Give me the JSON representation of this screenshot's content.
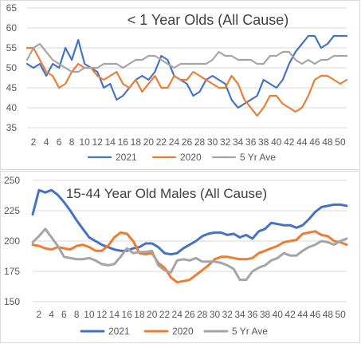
{
  "chart_data": [
    {
      "type": "line",
      "title": "< 1 Year Olds (All Cause)",
      "xlabel": "",
      "ylabel": "",
      "x": [
        1,
        2,
        3,
        4,
        5,
        6,
        7,
        8,
        9,
        10,
        11,
        12,
        13,
        14,
        15,
        16,
        17,
        18,
        19,
        20,
        21,
        22,
        23,
        24,
        25,
        26,
        27,
        28,
        29,
        30,
        31,
        32,
        33,
        34,
        35,
        36,
        37,
        38,
        39,
        40,
        41,
        42,
        43,
        44,
        45,
        46,
        47,
        48,
        49,
        50,
        51
      ],
      "x_ticks": [
        2,
        4,
        6,
        8,
        10,
        12,
        14,
        16,
        18,
        20,
        22,
        24,
        26,
        28,
        30,
        32,
        34,
        36,
        38,
        40,
        42,
        44,
        46,
        48,
        50
      ],
      "ylim": [
        35,
        65
      ],
      "y_ticks": [
        35,
        40,
        45,
        50,
        55,
        60,
        65
      ],
      "grid": true,
      "legend": "bottom",
      "series": [
        {
          "name": "2021",
          "color": "#4472c4",
          "values": [
            51,
            50,
            51,
            48,
            51,
            50,
            55,
            52,
            57,
            51,
            50,
            49,
            45,
            46,
            42,
            43,
            45,
            47,
            48,
            47,
            49,
            53,
            52,
            48,
            47,
            46,
            43,
            44,
            47,
            48,
            47,
            46,
            42,
            40,
            41,
            42,
            43,
            47,
            46,
            45,
            47,
            51,
            54,
            56,
            58,
            58,
            55,
            56,
            58,
            58,
            58
          ]
        },
        {
          "name": "2020",
          "color": "#ed7d31",
          "values": [
            55,
            55,
            52,
            49,
            48,
            45,
            46,
            49,
            51,
            50,
            50,
            48,
            47,
            48,
            49,
            46,
            45,
            47,
            44,
            46,
            48,
            45,
            45,
            48,
            47,
            47,
            49,
            48,
            47,
            46,
            45,
            45,
            48,
            46,
            42,
            40,
            38,
            40,
            43,
            43,
            41,
            40,
            39,
            40,
            43,
            47,
            48,
            48,
            47,
            46,
            47
          ]
        },
        {
          "name": "5 Yr Ave",
          "color": "#a5a5a5",
          "values": [
            52,
            55,
            56,
            54,
            52,
            51,
            50,
            49,
            49,
            50,
            50,
            50,
            51,
            51,
            51,
            50,
            51,
            52,
            52,
            53,
            53,
            52,
            51,
            50,
            51,
            51,
            51,
            51,
            51,
            52,
            54,
            53,
            53,
            52,
            52,
            52,
            51,
            51,
            53,
            53,
            54,
            54,
            52,
            51,
            52,
            51,
            52,
            52,
            53,
            53,
            53
          ]
        }
      ]
    },
    {
      "type": "line",
      "title": "15-44 Year Old Males (All Cause)",
      "xlabel": "",
      "ylabel": "",
      "x": [
        1,
        2,
        3,
        4,
        5,
        6,
        7,
        8,
        9,
        10,
        11,
        12,
        13,
        14,
        15,
        16,
        17,
        18,
        19,
        20,
        21,
        22,
        23,
        24,
        25,
        26,
        27,
        28,
        29,
        30,
        31,
        32,
        33,
        34,
        35,
        36,
        37,
        38,
        39,
        40,
        41,
        42,
        43,
        44,
        45,
        46,
        47,
        48,
        49,
        50,
        51
      ],
      "x_ticks": [
        2,
        4,
        6,
        8,
        10,
        12,
        14,
        16,
        18,
        20,
        22,
        24,
        26,
        28,
        30,
        32,
        34,
        36,
        38,
        40,
        42,
        44,
        46,
        48,
        50
      ],
      "ylim": [
        150,
        250
      ],
      "y_ticks": [
        150,
        175,
        200,
        225,
        250
      ],
      "grid": true,
      "legend": "bottom",
      "series": [
        {
          "name": "2021",
          "color": "#4472c4",
          "values": [
            222,
            242,
            240,
            242,
            238,
            232,
            225,
            217,
            210,
            203,
            200,
            197,
            195,
            193,
            192,
            192,
            194,
            195,
            198,
            198,
            195,
            190,
            189,
            190,
            194,
            197,
            200,
            204,
            206,
            207,
            207,
            205,
            206,
            203,
            205,
            202,
            208,
            210,
            215,
            214,
            213,
            213,
            211,
            213,
            218,
            224,
            228,
            229,
            230,
            230,
            229
          ]
        },
        {
          "name": "2020",
          "color": "#ed7d31",
          "values": [
            197,
            196,
            194,
            193,
            195,
            194,
            193,
            196,
            197,
            195,
            192,
            192,
            196,
            203,
            207,
            206,
            200,
            190,
            189,
            190,
            182,
            178,
            170,
            166,
            167,
            168,
            172,
            176,
            180,
            185,
            187,
            187,
            186,
            185,
            185,
            186,
            190,
            192,
            194,
            196,
            199,
            200,
            201,
            206,
            207,
            208,
            205,
            204,
            200,
            199,
            197
          ]
        },
        {
          "name": "5 Yr Ave",
          "color": "#a5a5a5",
          "values": [
            199,
            204,
            210,
            203,
            196,
            187,
            186,
            185,
            185,
            186,
            184,
            181,
            180,
            181,
            187,
            194,
            190,
            191,
            191,
            192,
            180,
            176,
            174,
            184,
            185,
            184,
            186,
            183,
            183,
            183,
            182,
            180,
            177,
            168,
            168,
            175,
            178,
            180,
            184,
            186,
            190,
            188,
            188,
            192,
            195,
            197,
            200,
            199,
            197,
            200,
            202
          ]
        }
      ]
    }
  ]
}
